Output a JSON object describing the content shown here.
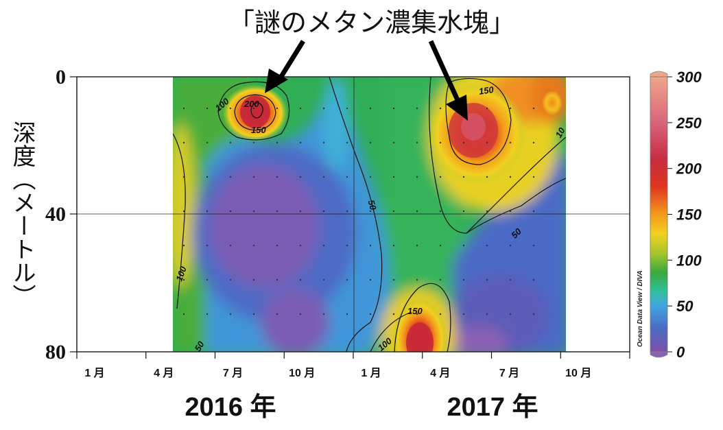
{
  "chart_data": {
    "type": "heatmap",
    "title": "「謎のメタン濃集水塊」",
    "ylabel": "深度（メートル）",
    "yticks": [
      "0",
      "40",
      "80"
    ],
    "ylim": [
      0,
      80
    ],
    "xticks": [
      "1 月",
      "4 月",
      "7 月",
      "10 月",
      "1 月",
      "4 月",
      "7 月",
      "10 月"
    ],
    "years": [
      "2016 年",
      "2017 年"
    ],
    "colorbar": {
      "ticks": [
        "0",
        "50",
        "100",
        "150",
        "200",
        "250",
        "300"
      ],
      "range": [
        0,
        300
      ],
      "credit": "Ocean Data View / DIVA",
      "colors": [
        "#7b4fa8",
        "#4a6ec6",
        "#3fa7e0",
        "#2fbf9a",
        "#3aa83c",
        "#a8c62c",
        "#f2d020",
        "#f39a1c",
        "#e0351e",
        "#c72c40",
        "#d8647a",
        "#eea58a"
      ]
    },
    "contour_labels": [
      "100",
      "200",
      "150",
      "150",
      "100",
      "50",
      "50",
      "100",
      "50",
      "150",
      "100",
      "10"
    ],
    "hotspots": [
      {
        "time_month": 7.7,
        "depth_m": 12,
        "value": 210
      },
      {
        "time_month": 17.3,
        "depth_m": 17,
        "value": 195
      },
      {
        "time_month": 14.4,
        "depth_m": 78,
        "value": 185
      }
    ]
  }
}
